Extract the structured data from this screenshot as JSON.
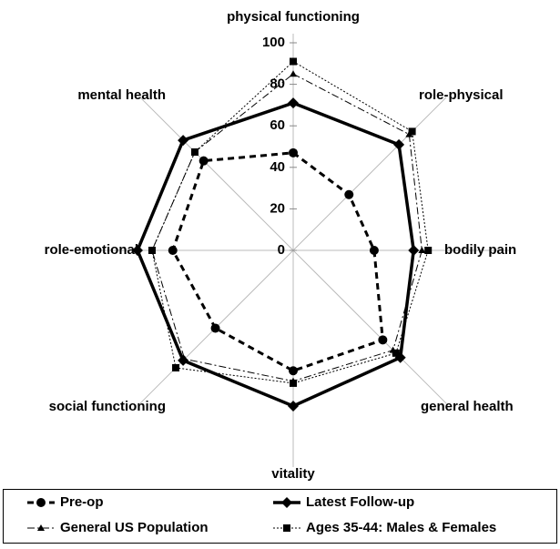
{
  "chart_data": {
    "type": "radar",
    "categories": [
      "physical functioning",
      "role-physical",
      "bodily pain",
      "general health",
      "vitality",
      "social functioning",
      "role-emotional",
      "mental health"
    ],
    "rlim": [
      0,
      100
    ],
    "rticks": [
      0,
      20,
      40,
      60,
      80,
      100
    ],
    "series": [
      {
        "name": "Pre-op",
        "color": "#000000",
        "line_width": 3,
        "dash": "7,5",
        "marker": "circle",
        "values": [
          47,
          38,
          39,
          61,
          58,
          53,
          58,
          61
        ]
      },
      {
        "name": "Latest Follow-up",
        "color": "#000000",
        "line_width": 3.5,
        "dash": "none",
        "marker": "diamond",
        "values": [
          71,
          72,
          58,
          73,
          75,
          75,
          75,
          75
        ]
      },
      {
        "name": "General US Population",
        "color": "#000000",
        "line_width": 1,
        "dash": "8,3,2,3",
        "marker": "triangle",
        "values": [
          85,
          79,
          62,
          68,
          63,
          74,
          68,
          67
        ]
      },
      {
        "name": "Ages 35-44: Males & Females",
        "color": "#000000",
        "line_width": 1,
        "dash": "2,2",
        "marker": "square",
        "values": [
          91,
          81,
          65,
          70,
          64,
          80,
          68,
          67
        ]
      }
    ]
  }
}
